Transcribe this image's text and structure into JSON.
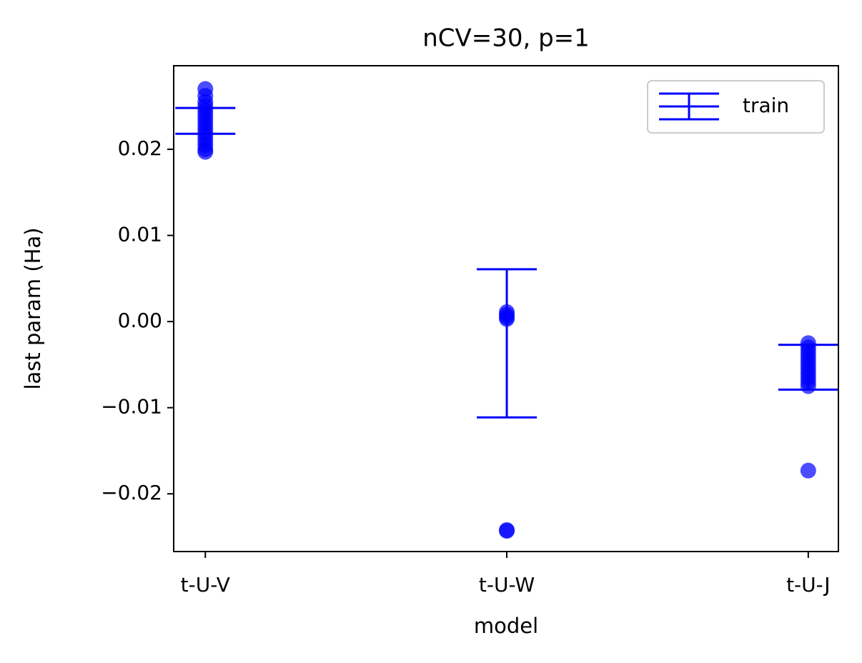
{
  "chart_data": {
    "type": "errorbar",
    "title": "nCV=30, p=1",
    "xlabel": "model",
    "ylabel": "last param (Ha)",
    "categories": [
      "t-U-V",
      "t-U-W",
      "t-U-J"
    ],
    "xlim": [
      -0.105,
      2.1
    ],
    "ylim": [
      -0.0267,
      0.0297
    ],
    "yticks": [
      {
        "value": -0.02,
        "label": "−0.02"
      },
      {
        "value": -0.01,
        "label": "−0.01"
      },
      {
        "value": 0,
        "label": "0.00"
      },
      0.01,
      0.02
    ],
    "legend": "upper right",
    "series": [
      {
        "name": "train",
        "color": "#0000ff",
        "values": [
          0.0233,
          -0.00253,
          -0.0053
        ],
        "errors": [
          0.0015,
          0.0086,
          0.0026
        ]
      }
    ],
    "points": {
      "color": "#0000ff",
      "x": [
        0,
        0,
        0,
        0,
        0,
        0,
        0,
        0,
        0,
        0,
        0,
        0,
        0,
        0,
        0,
        1,
        1,
        1,
        1,
        1,
        1,
        2,
        2,
        2,
        2,
        2,
        2,
        2,
        2,
        2,
        2,
        2,
        2
      ],
      "y": [
        0.027,
        0.0262,
        0.0255,
        0.025,
        0.0245,
        0.024,
        0.0235,
        0.023,
        0.0225,
        0.022,
        0.0215,
        0.021,
        0.0205,
        0.02,
        0.0197,
        0.0011,
        0.0008,
        0.0005,
        0.0003,
        -0.0243,
        -0.0242,
        -0.0025,
        -0.003,
        -0.0035,
        -0.004,
        -0.0045,
        -0.005,
        -0.0055,
        -0.006,
        -0.0065,
        -0.007,
        -0.0075,
        -0.0173
      ]
    }
  }
}
